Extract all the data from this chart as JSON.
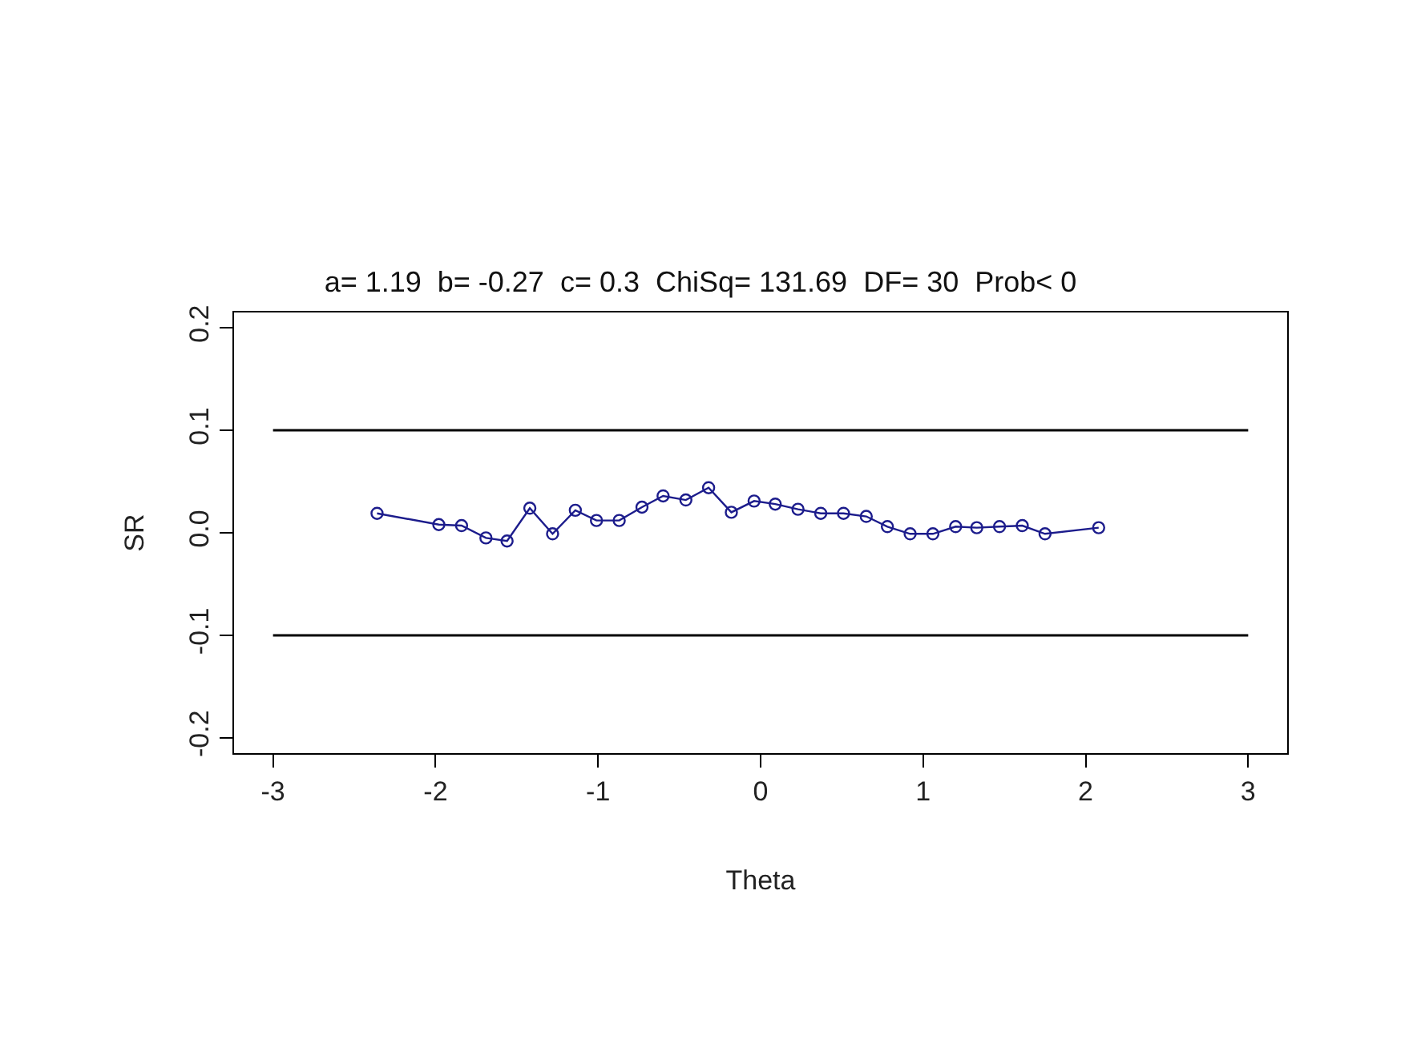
{
  "chart_data": {
    "type": "line",
    "title": "a= 1.19  b= -0.27  c= 0.3  ChiSq= 131.69  DF= 30  Prob< 0",
    "xlabel": "Theta",
    "ylabel": "SR",
    "x": [
      -2.36,
      -1.98,
      -1.84,
      -1.69,
      -1.56,
      -1.42,
      -1.28,
      -1.14,
      -1.01,
      -0.87,
      -0.73,
      -0.6,
      -0.46,
      -0.32,
      -0.18,
      -0.04,
      0.09,
      0.23,
      0.37,
      0.51,
      0.65,
      0.78,
      0.92,
      1.06,
      1.2,
      1.33,
      1.47,
      1.61,
      1.75,
      2.08
    ],
    "series": [
      {
        "color": "#1c1c8c",
        "values": [
          0.019,
          0.008,
          0.007,
          -0.005,
          -0.008,
          0.024,
          -0.001,
          0.022,
          0.012,
          0.012,
          0.025,
          0.036,
          0.032,
          0.044,
          0.02,
          0.031,
          0.028,
          0.023,
          0.019,
          0.019,
          0.016,
          0.006,
          -0.001,
          -0.001,
          0.006,
          0.005,
          0.006,
          0.007,
          -0.001,
          0.005
        ]
      }
    ],
    "marker": "circle",
    "line_style": "solid",
    "xlim": [
      -3.24,
      3.24
    ],
    "xticks": [
      -3,
      -2,
      -1,
      0,
      1,
      2,
      3
    ],
    "ylim": [
      -0.215,
      0.215
    ],
    "yticks": [
      -0.2,
      -0.1,
      {
        "value": 0,
        "label": "0.0"
      },
      0.1,
      0.2
    ],
    "ref_lines": [
      {
        "axis": "y",
        "value": 0.1,
        "color": "#000000"
      },
      {
        "axis": "y",
        "value": -0.1,
        "color": "#000000"
      }
    ]
  }
}
